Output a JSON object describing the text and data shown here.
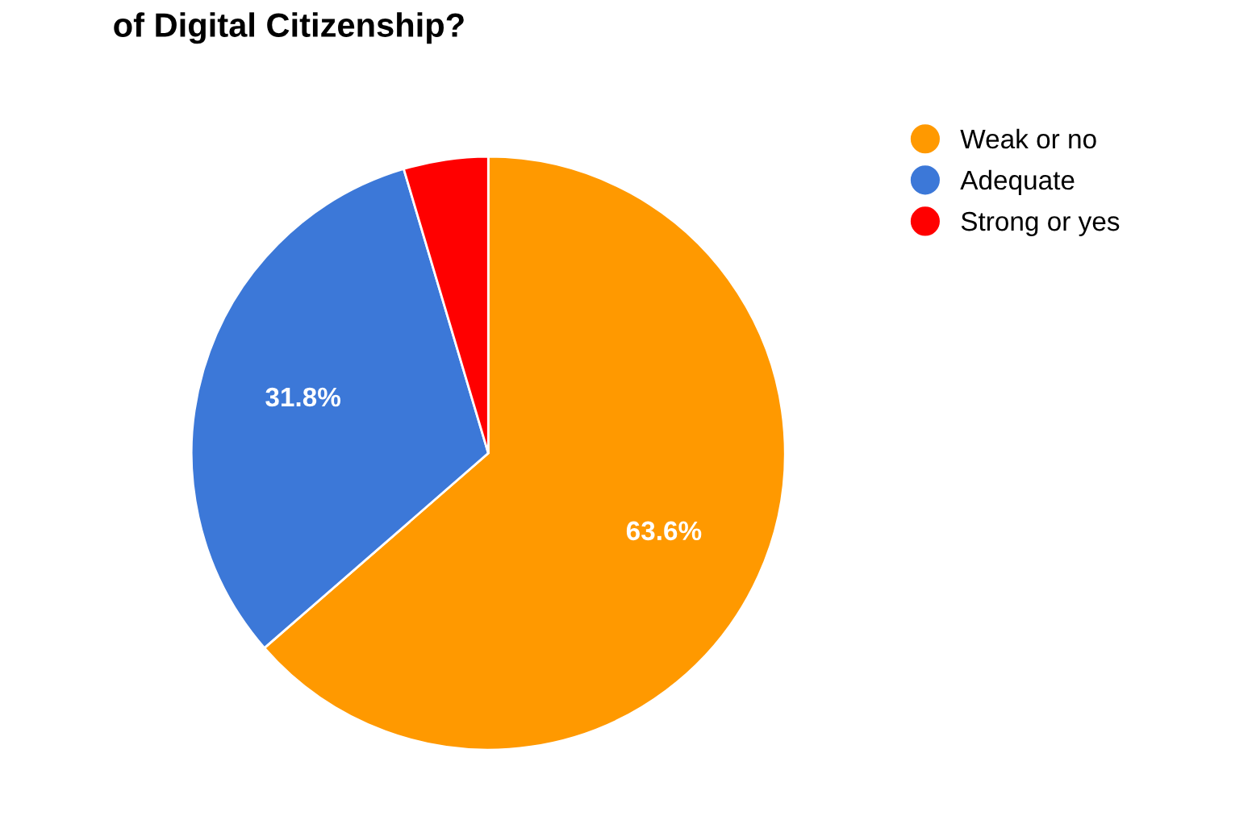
{
  "chart_data": {
    "type": "pie",
    "title": "of Digital Citizenship?",
    "categories": [
      "Weak or no",
      "Adequate",
      "Strong or yes"
    ],
    "values": [
      63.6,
      31.8,
      4.6
    ],
    "colors": [
      "#ff9900",
      "#3c78d8",
      "#ff0000"
    ],
    "value_labels": [
      "63.6%",
      "31.8%",
      null
    ],
    "legend": "right"
  }
}
